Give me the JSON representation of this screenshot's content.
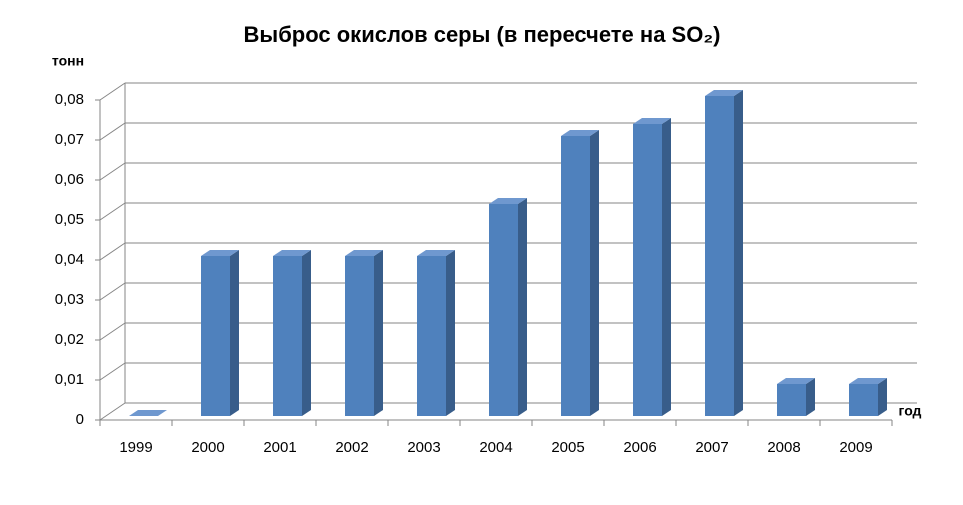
{
  "chart_data": {
    "type": "bar3d",
    "title": "Выброс окислов серы (в пересчете на SO₂)",
    "y_label": "тонн",
    "x_label": "год",
    "categories": [
      "1999",
      "2000",
      "2001",
      "2002",
      "2003",
      "2004",
      "2005",
      "2006",
      "2007",
      "2008",
      "2009"
    ],
    "values": [
      0,
      0.04,
      0.04,
      0.04,
      0.04,
      0.053,
      0.07,
      0.073,
      0.08,
      0.008,
      0.008
    ],
    "color": "#4f81bd",
    "ylim": [
      0,
      0.08
    ],
    "yticks": [
      0,
      {
        "value": 0.01,
        "label": "0,01"
      },
      {
        "value": 0.02,
        "label": "0,02"
      },
      {
        "value": 0.03,
        "label": "0,03"
      },
      {
        "value": 0.04,
        "label": "0,04"
      },
      {
        "value": 0.05,
        "label": "0,05"
      },
      {
        "value": 0.06,
        "label": "0,06"
      },
      {
        "value": 0.07,
        "label": "0,07"
      },
      {
        "value": 0.08,
        "label": "0,08"
      }
    ],
    "grid": true
  }
}
